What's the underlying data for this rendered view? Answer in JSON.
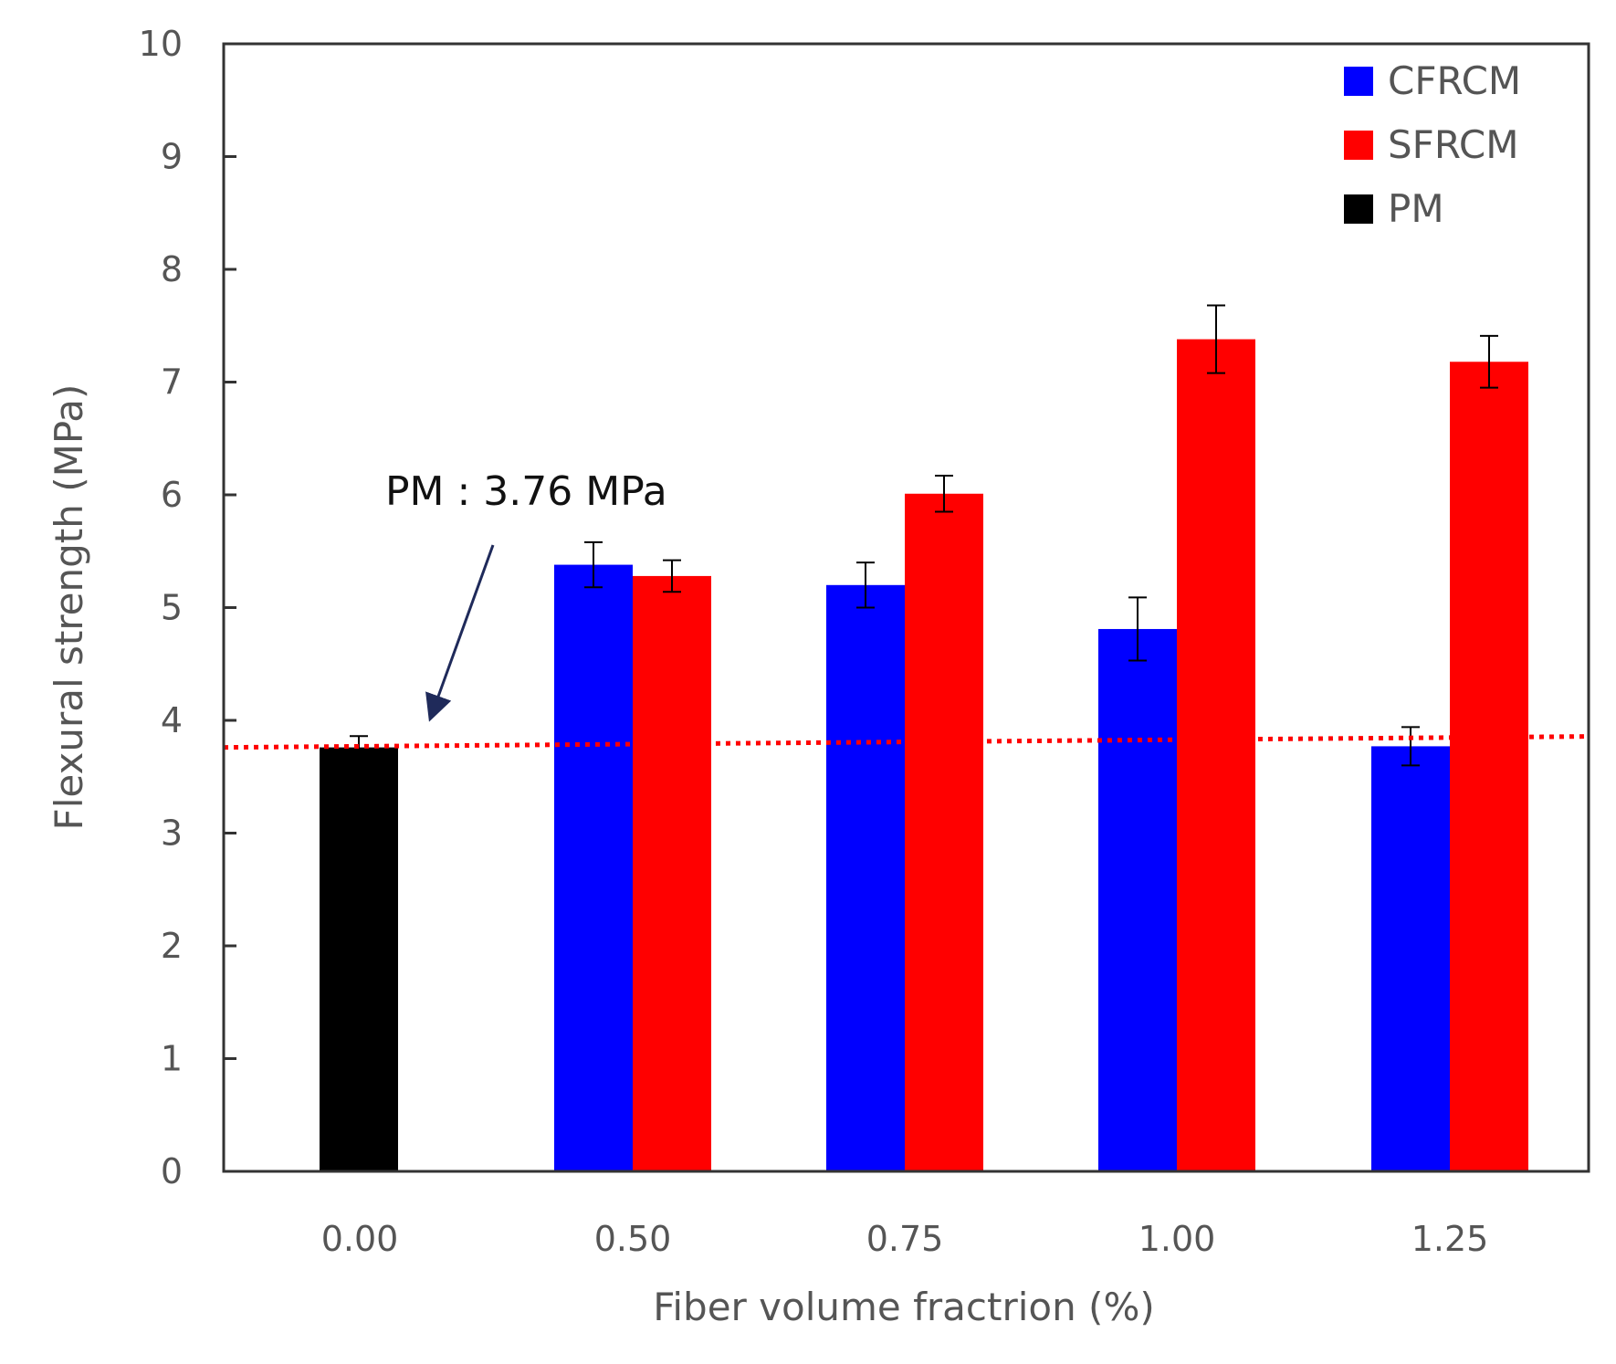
{
  "chart_data": {
    "type": "bar",
    "categories": [
      "0.00",
      "0.50",
      "0.75",
      "1.00",
      "1.25"
    ],
    "xlabel": "Fiber volume fractrion (%)",
    "ylabel": "Flexural strength (MPa)",
    "ylim": [
      0,
      10
    ],
    "yticks": [
      "0",
      "1",
      "2",
      "3",
      "4",
      "5",
      "6",
      "7",
      "8",
      "9",
      "10"
    ],
    "grid": false,
    "legend_position": "top-right",
    "series": [
      {
        "name": "CFRCM",
        "color": "#0000FF",
        "values": [
          null,
          5.38,
          5.2,
          4.81,
          3.77
        ],
        "errors": [
          null,
          0.2,
          0.2,
          0.28,
          0.17
        ]
      },
      {
        "name": "SFRCM",
        "color": "#FF0000",
        "values": [
          null,
          5.28,
          6.01,
          7.38,
          7.18
        ],
        "errors": [
          null,
          0.14,
          0.16,
          0.3,
          0.23
        ]
      },
      {
        "name": "PM",
        "color": "#000000",
        "values": [
          3.76,
          null,
          null,
          null,
          null
        ],
        "errors": [
          0.1,
          null,
          null,
          null,
          null
        ]
      }
    ],
    "reference_line": {
      "value": 3.76,
      "style": "dotted",
      "color": "#FF0000"
    },
    "annotation": {
      "text": "PM : 3.76 MPa",
      "arrow_color": "#1F2A5A"
    }
  }
}
